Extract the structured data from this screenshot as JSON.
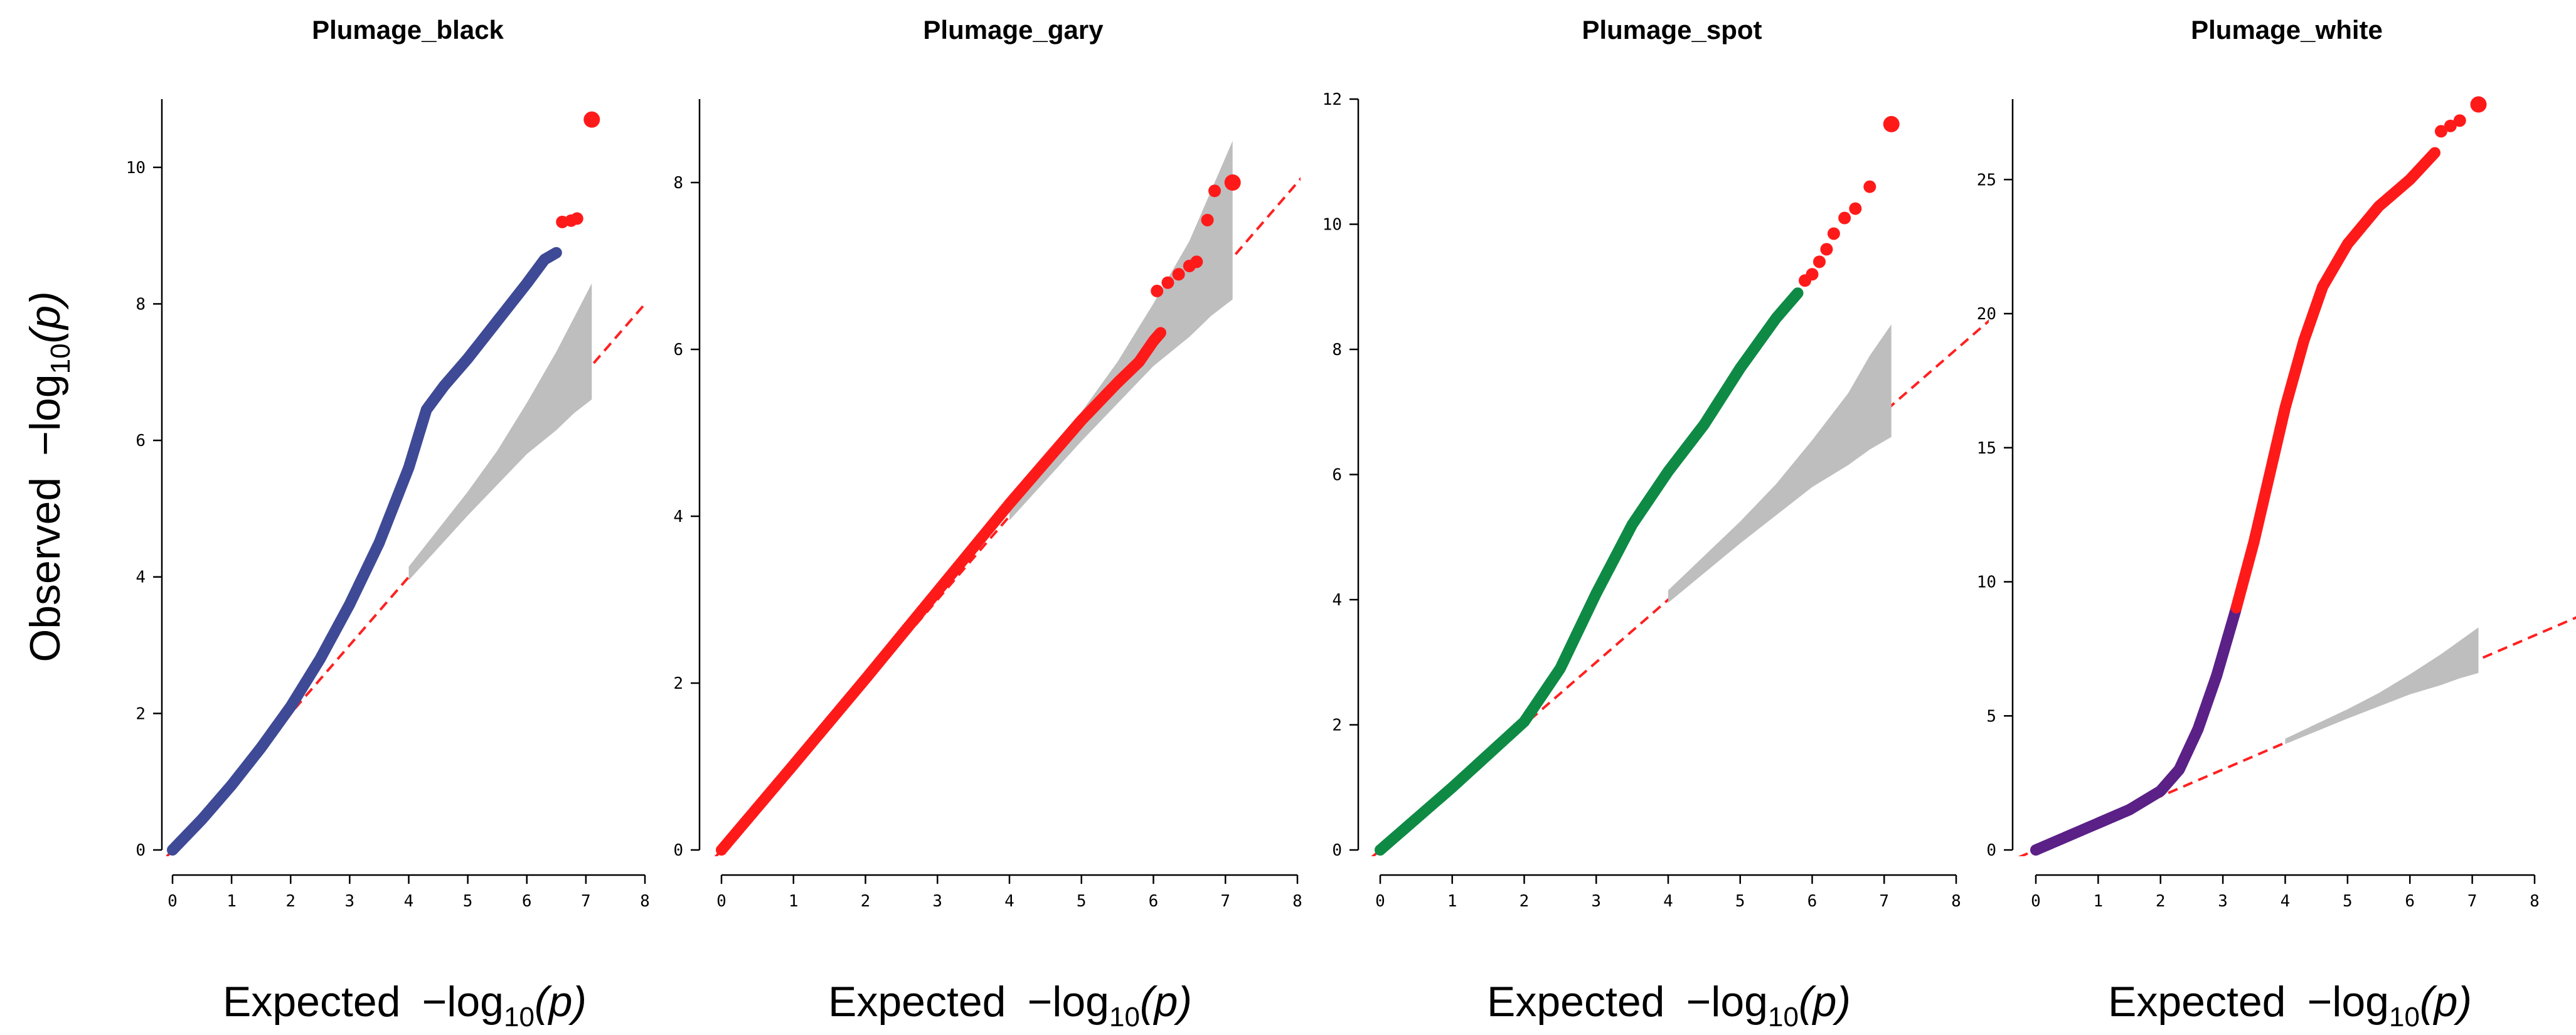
{
  "chart_data": [
    {
      "type": "scatter",
      "title": "Plumage_black",
      "xlabel_main": "Expected",
      "ylabel_main": "Observed",
      "label_math_prefix": "−log",
      "label_math_sub": "10",
      "label_math_arg": "(p)",
      "xlim": [
        0,
        8
      ],
      "ylim": [
        0,
        11
      ],
      "xticks": [
        "0",
        "1",
        "2",
        "3",
        "4",
        "5",
        "6",
        "7",
        "8"
      ],
      "yticks": [
        "0",
        "2",
        "4",
        "6",
        "8",
        "10"
      ],
      "ytick_values": [
        0,
        2,
        4,
        6,
        8,
        10
      ],
      "xtick_values": [
        0,
        1,
        2,
        3,
        4,
        5,
        6,
        7,
        8
      ],
      "colors": {
        "base": "#3f4a96",
        "significant": "#ff1a1a",
        "band": "#bebebe",
        "reference": "#ff2020"
      },
      "significance_threshold": 9.0,
      "curve": [
        [
          0,
          0
        ],
        [
          0.5,
          0.45
        ],
        [
          1,
          0.95
        ],
        [
          1.5,
          1.5
        ],
        [
          2,
          2.1
        ],
        [
          2.5,
          2.8
        ],
        [
          3,
          3.6
        ],
        [
          3.5,
          4.5
        ],
        [
          4,
          5.6
        ],
        [
          4.3,
          6.45
        ],
        [
          4.6,
          6.8
        ],
        [
          5,
          7.2
        ],
        [
          5.5,
          7.75
        ],
        [
          6,
          8.3
        ],
        [
          6.3,
          8.65
        ],
        [
          6.5,
          8.75
        ]
      ],
      "outliers": [
        [
          6.6,
          9.2
        ],
        [
          6.75,
          9.22
        ],
        [
          6.85,
          9.25
        ],
        [
          7.1,
          10.7
        ]
      ],
      "band": [
        [
          4,
          3.95,
          4.15
        ],
        [
          5,
          4.9,
          5.25
        ],
        [
          5.5,
          5.35,
          5.85
        ],
        [
          6,
          5.8,
          6.55
        ],
        [
          6.5,
          6.15,
          7.3
        ],
        [
          6.8,
          6.4,
          7.8
        ],
        [
          7.1,
          6.6,
          8.3
        ]
      ]
    },
    {
      "type": "scatter",
      "title": "Plumage_gary",
      "xlabel_main": "Expected",
      "ylabel_main": "",
      "label_math_prefix": "−log",
      "label_math_sub": "10",
      "label_math_arg": "(p)",
      "xlim": [
        0,
        8
      ],
      "ylim": [
        0,
        9
      ],
      "xticks": [
        "0",
        "1",
        "2",
        "3",
        "4",
        "5",
        "6",
        "7",
        "8"
      ],
      "yticks": [
        "0",
        "2",
        "4",
        "6",
        "8"
      ],
      "ytick_values": [
        0,
        2,
        4,
        6,
        8
      ],
      "xtick_values": [
        0,
        1,
        2,
        3,
        4,
        5,
        6,
        7,
        8
      ],
      "colors": {
        "base": "#ff1a1a",
        "significant": "#ff1a1a",
        "band": "#bebebe",
        "reference": "#ff2020"
      },
      "significance_threshold": 0,
      "curve": [
        [
          0,
          0
        ],
        [
          1,
          1.02
        ],
        [
          2,
          2.05
        ],
        [
          3,
          3.1
        ],
        [
          4,
          4.15
        ],
        [
          4.5,
          4.65
        ],
        [
          5,
          5.15
        ],
        [
          5.5,
          5.6
        ],
        [
          5.8,
          5.85
        ],
        [
          6,
          6.1
        ],
        [
          6.1,
          6.2
        ]
      ],
      "outliers": [
        [
          6.05,
          6.7
        ],
        [
          6.2,
          6.8
        ],
        [
          6.35,
          6.9
        ],
        [
          6.5,
          7.0
        ],
        [
          6.6,
          7.05
        ],
        [
          6.75,
          7.55
        ],
        [
          6.85,
          7.9
        ],
        [
          7.1,
          8.0
        ]
      ],
      "band": [
        [
          4,
          3.95,
          4.15
        ],
        [
          5,
          4.9,
          5.25
        ],
        [
          5.5,
          5.35,
          5.85
        ],
        [
          6,
          5.8,
          6.55
        ],
        [
          6.5,
          6.15,
          7.3
        ],
        [
          6.8,
          6.4,
          7.9
        ],
        [
          7.1,
          6.6,
          8.5
        ]
      ]
    },
    {
      "type": "scatter",
      "title": "Plumage_spot",
      "xlabel_main": "Expected",
      "ylabel_main": "",
      "label_math_prefix": "−log",
      "label_math_sub": "10",
      "label_math_arg": "(p)",
      "xlim": [
        0,
        8
      ],
      "ylim": [
        0,
        12
      ],
      "xticks": [
        "0",
        "1",
        "2",
        "3",
        "4",
        "5",
        "6",
        "7",
        "8"
      ],
      "yticks": [
        "0",
        "2",
        "4",
        "6",
        "8",
        "10",
        "12"
      ],
      "ytick_values": [
        0,
        2,
        4,
        6,
        8,
        10,
        12
      ],
      "xtick_values": [
        0,
        1,
        2,
        3,
        4,
        5,
        6,
        7,
        8
      ],
      "colors": {
        "base": "#0e8a45",
        "significant": "#ff1a1a",
        "band": "#bebebe",
        "reference": "#ff2020"
      },
      "significance_threshold": 9.0,
      "curve": [
        [
          0,
          0
        ],
        [
          1,
          1.0
        ],
        [
          2,
          2.05
        ],
        [
          2.5,
          2.9
        ],
        [
          3,
          4.1
        ],
        [
          3.5,
          5.2
        ],
        [
          4,
          6.05
        ],
        [
          4.5,
          6.8
        ],
        [
          5,
          7.7
        ],
        [
          5.5,
          8.5
        ],
        [
          5.8,
          8.9
        ]
      ],
      "outliers": [
        [
          5.9,
          9.1
        ],
        [
          6.0,
          9.2
        ],
        [
          6.1,
          9.4
        ],
        [
          6.2,
          9.6
        ],
        [
          6.3,
          9.85
        ],
        [
          6.45,
          10.1
        ],
        [
          6.6,
          10.25
        ],
        [
          6.8,
          10.6
        ],
        [
          7.1,
          11.6
        ]
      ],
      "band": [
        [
          4,
          3.95,
          4.15
        ],
        [
          5,
          4.9,
          5.25
        ],
        [
          5.5,
          5.35,
          5.85
        ],
        [
          6,
          5.8,
          6.55
        ],
        [
          6.5,
          6.15,
          7.3
        ],
        [
          6.8,
          6.4,
          7.9
        ],
        [
          7.1,
          6.6,
          8.4
        ]
      ]
    },
    {
      "type": "scatter",
      "title": "Plumage_white",
      "xlabel_main": "Expected",
      "ylabel_main": "",
      "label_math_prefix": "−log",
      "label_math_sub": "10",
      "label_math_arg": "(p)",
      "xlim": [
        0,
        8
      ],
      "ylim": [
        0,
        28
      ],
      "xticks": [
        "0",
        "1",
        "2",
        "3",
        "4",
        "5",
        "6",
        "7",
        "8"
      ],
      "yticks": [
        "0",
        "5",
        "10",
        "15",
        "20",
        "25"
      ],
      "ytick_values": [
        0,
        5,
        10,
        15,
        20,
        25
      ],
      "xtick_values": [
        0,
        1,
        2,
        3,
        4,
        5,
        6,
        7,
        8
      ],
      "colors": {
        "base": "#5b2187",
        "significant": "#ff1a1a",
        "band": "#bebebe",
        "reference": "#ff2020"
      },
      "significance_threshold": 9.0,
      "curve": [
        [
          0,
          0
        ],
        [
          1,
          1.0
        ],
        [
          1.5,
          1.5
        ],
        [
          2,
          2.2
        ],
        [
          2.3,
          3.0
        ],
        [
          2.6,
          4.5
        ],
        [
          2.9,
          6.5
        ],
        [
          3.2,
          8.9
        ],
        [
          3.5,
          11.5
        ],
        [
          3.8,
          14.5
        ],
        [
          4.0,
          16.5
        ],
        [
          4.3,
          19.0
        ],
        [
          4.6,
          21.0
        ],
        [
          5.0,
          22.6
        ],
        [
          5.5,
          24.0
        ],
        [
          6.0,
          25.0
        ],
        [
          6.4,
          26.0
        ]
      ],
      "outliers": [
        [
          6.5,
          26.8
        ],
        [
          6.65,
          27.0
        ],
        [
          6.8,
          27.2
        ],
        [
          7.1,
          27.8
        ]
      ],
      "band": [
        [
          4,
          3.95,
          4.15
        ],
        [
          5,
          4.9,
          5.25
        ],
        [
          5.5,
          5.35,
          5.85
        ],
        [
          6,
          5.8,
          6.55
        ],
        [
          6.5,
          6.15,
          7.3
        ],
        [
          6.8,
          6.4,
          7.8
        ],
        [
          7.1,
          6.6,
          8.3
        ]
      ]
    }
  ]
}
